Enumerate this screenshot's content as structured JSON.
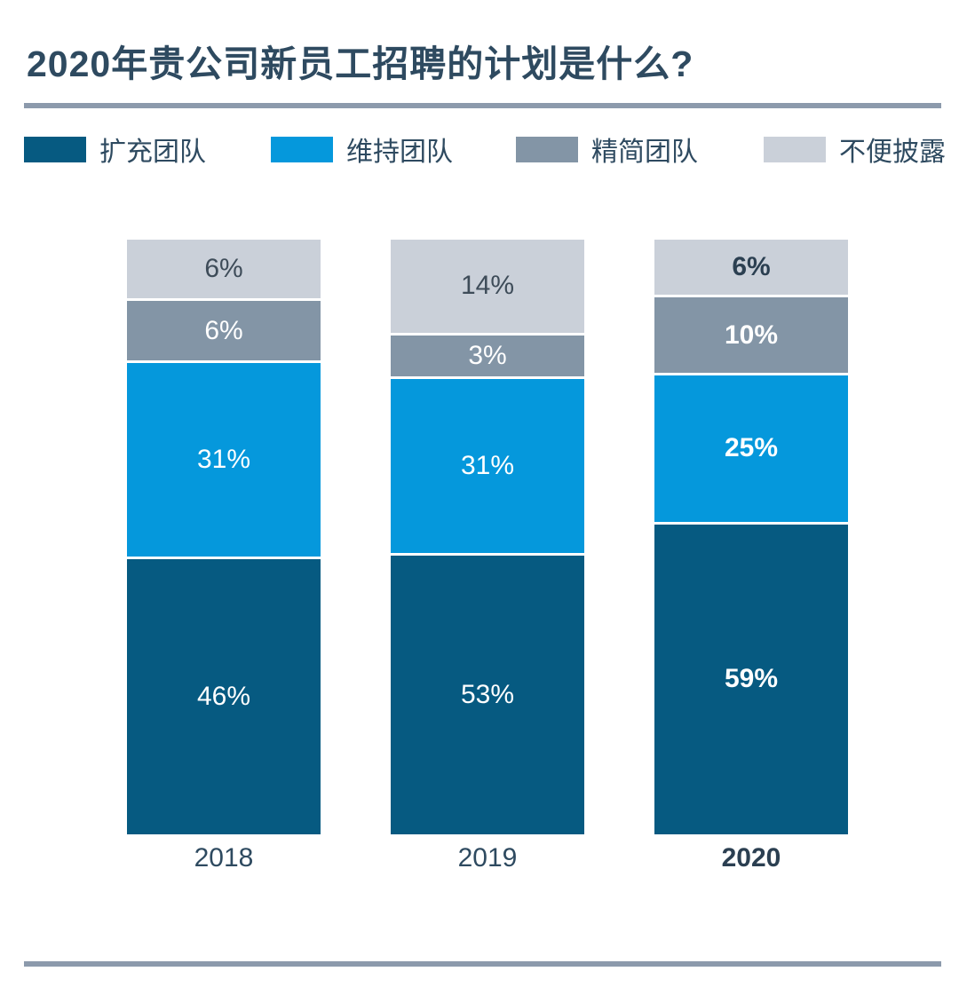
{
  "title": "2020年贵公司新员工招聘的计划是什么?",
  "colors": {
    "dark_blue": "#065a81",
    "light_blue": "#0598dc",
    "slate_gray": "#8395a6",
    "light_gray": "#cad0d9",
    "title_text": "#2e4a60",
    "rule_gray": "#8c9aac",
    "dark_label": "#3e4c59",
    "emph_dark_label": "#2b3f51"
  },
  "legend": [
    {
      "label": "扩充团队",
      "key": "expand"
    },
    {
      "label": "维持团队",
      "key": "maintain"
    },
    {
      "label": "精简团队",
      "key": "reduce"
    },
    {
      "label": "不便披露",
      "key": "na"
    }
  ],
  "chart_data": {
    "type": "bar",
    "stacked": true,
    "normalized_height": true,
    "title": "2020年贵公司新员工招聘的计划是什么?",
    "categories": [
      "2018",
      "2019",
      "2020"
    ],
    "series": [
      {
        "name": "扩充团队",
        "values": [
          46,
          53,
          59
        ]
      },
      {
        "name": "维持团队",
        "values": [
          31,
          31,
          25
        ]
      },
      {
        "name": "精简团队",
        "values": [
          6,
          3,
          10
        ]
      },
      {
        "name": "不便披露",
        "values": [
          6,
          14,
          6
        ]
      }
    ],
    "value_suffix": "%",
    "legend_position": "top",
    "grid": false,
    "emphasized_category": "2020"
  },
  "bars": [
    {
      "category": "2018",
      "emphasis": false,
      "segments": [
        {
          "key": "na",
          "value": 6,
          "label": "6%"
        },
        {
          "key": "reduce",
          "value": 6,
          "label": "6%"
        },
        {
          "key": "maintain",
          "value": 31,
          "label": "31%"
        },
        {
          "key": "expand",
          "value": 46,
          "label": "46%"
        }
      ]
    },
    {
      "category": "2019",
      "emphasis": false,
      "segments": [
        {
          "key": "na",
          "value": 14,
          "label": "14%"
        },
        {
          "key": "reduce",
          "value": 3,
          "label": "3%"
        },
        {
          "key": "maintain",
          "value": 31,
          "label": "31%"
        },
        {
          "key": "expand",
          "value": 53,
          "label": "53%"
        }
      ]
    },
    {
      "category": "2020",
      "emphasis": true,
      "segments": [
        {
          "key": "na",
          "value": 6,
          "label": "6%"
        },
        {
          "key": "reduce",
          "value": 10,
          "label": "10%"
        },
        {
          "key": "maintain",
          "value": 25,
          "label": "25%"
        },
        {
          "key": "expand",
          "value": 59,
          "label": "59%"
        }
      ]
    }
  ]
}
